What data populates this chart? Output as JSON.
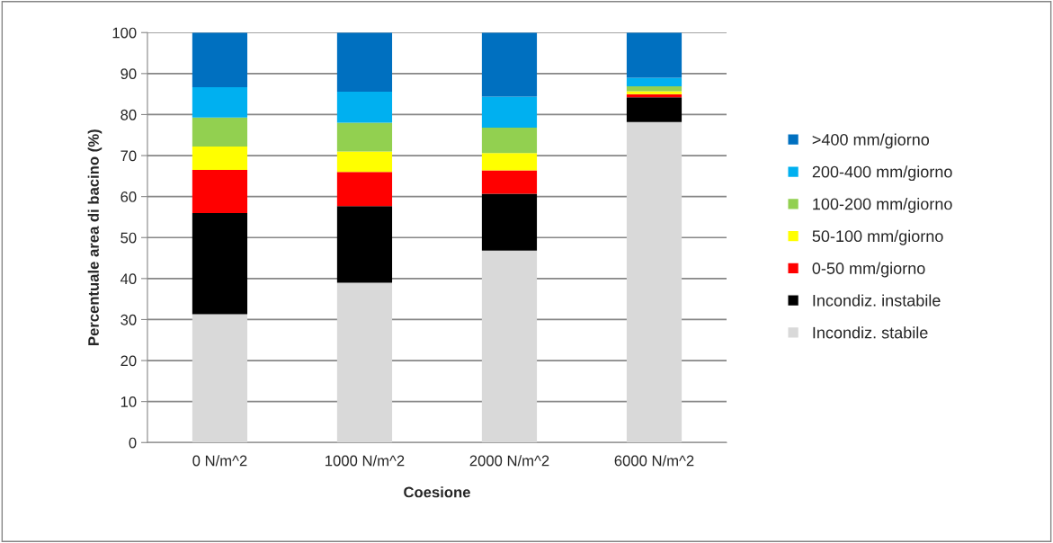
{
  "chart_data": {
    "type": "bar",
    "stacked": true,
    "xlabel": "Coesione",
    "ylabel": "Percentuale area di bacino (%)",
    "categories": [
      "0 N/m^2",
      "1000 N/m^2",
      "2000 N/m^2",
      "6000 N/m^2"
    ],
    "series": [
      {
        "name": "Incondiz. stabile",
        "color": "#d9d9d9",
        "values": [
          31.3,
          39.0,
          46.8,
          78.2
        ]
      },
      {
        "name": "Incondiz. instabile",
        "color": "#000000",
        "values": [
          24.7,
          18.7,
          13.9,
          6.0
        ]
      },
      {
        "name": "0-50 mm/giorno",
        "color": "#ff0000",
        "values": [
          10.5,
          8.3,
          5.7,
          0.8
        ]
      },
      {
        "name": "50-100 mm/giorno",
        "color": "#ffff00",
        "values": [
          5.7,
          5.0,
          4.2,
          0.7
        ]
      },
      {
        "name": "100-200 mm/giorno",
        "color": "#92d050",
        "values": [
          7.1,
          7.0,
          6.2,
          1.2
        ]
      },
      {
        "name": "200-400 mm/giorno",
        "color": "#00b0f0",
        "values": [
          7.4,
          7.6,
          7.6,
          2.1
        ]
      },
      {
        "name": ">400 mm/giorno",
        "color": "#0070c0",
        "values": [
          13.3,
          14.4,
          15.6,
          11.0
        ]
      }
    ],
    "ylim": [
      0,
      100
    ],
    "yticks": [
      0,
      10,
      20,
      30,
      40,
      50,
      60,
      70,
      80,
      90,
      100
    ],
    "grid": "y",
    "legend": "right"
  }
}
